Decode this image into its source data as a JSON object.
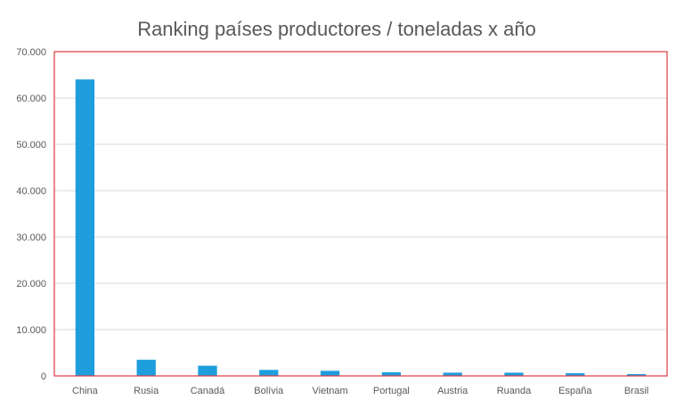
{
  "chart_data": {
    "type": "bar",
    "title": "Ranking países productores / toneladas x año",
    "xlabel": "",
    "ylabel": "",
    "categories": [
      "China",
      "Rusia",
      "Canadá",
      "Bolívia",
      "Vietnam",
      "Portugal",
      "Austria",
      "Ruanda",
      "España",
      "Brasil"
    ],
    "values": [
      64000,
      3500,
      2200,
      1300,
      1100,
      800,
      700,
      700,
      600,
      400
    ],
    "ylim": [
      0,
      70000
    ],
    "yticks": [
      0,
      10000,
      20000,
      30000,
      40000,
      50000,
      60000,
      70000
    ],
    "ytick_labels": [
      "0",
      "10.000",
      "20.000",
      "30.000",
      "40.000",
      "50.000",
      "60.000",
      "70.000"
    ],
    "grid": true,
    "legend": "none",
    "colors": {
      "bar": "#1f9ede",
      "plot_border": "#e0393e",
      "grid": "#d9d9d9"
    }
  }
}
